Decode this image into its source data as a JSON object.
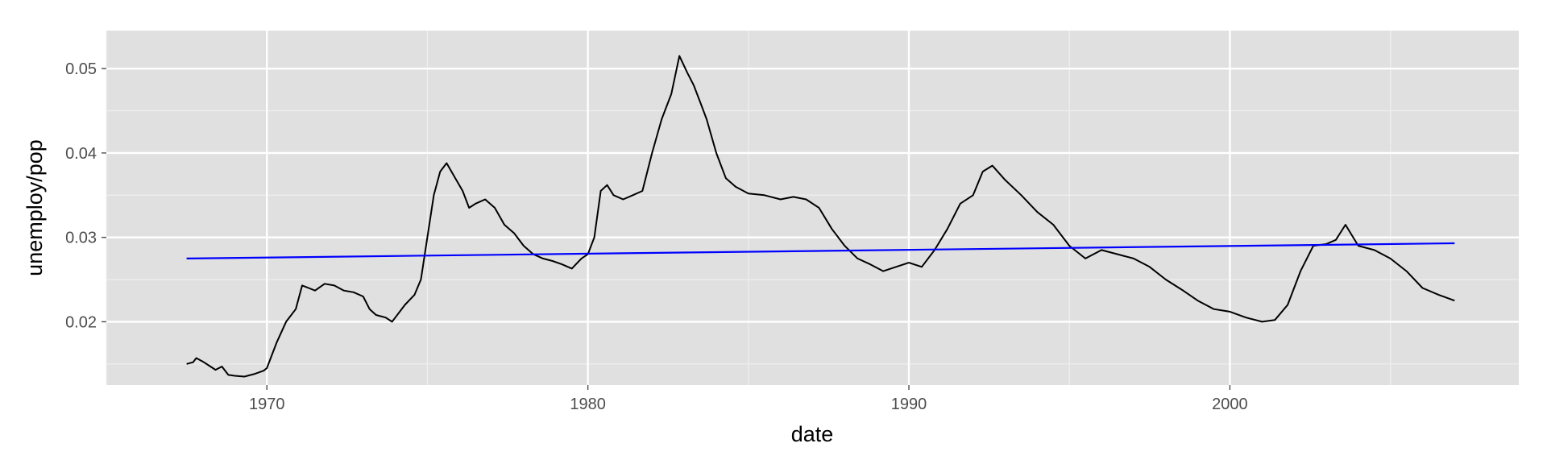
{
  "chart_data": {
    "type": "line",
    "xlabel": "date",
    "ylabel": "unemploy/pop",
    "xlim": [
      1965.0,
      2009.0
    ],
    "ylim": [
      0.0125,
      0.0545
    ],
    "x_ticks": [
      1970,
      1980,
      1990,
      2000
    ],
    "x_tick_labels": [
      "1970",
      "1980",
      "1990",
      "2000"
    ],
    "y_ticks": [
      0.02,
      0.03,
      0.04,
      0.05
    ],
    "y_tick_labels": [
      "0.02",
      "0.03",
      "0.04",
      "0.05"
    ],
    "grid": true,
    "panel_background": "#e0e0e0",
    "series": [
      {
        "color": "#000000",
        "x": [
          1967.5,
          1967.7,
          1967.8,
          1968.0,
          1968.2,
          1968.4,
          1968.6,
          1968.8,
          1969.0,
          1969.3,
          1969.6,
          1969.9,
          1970.0,
          1970.3,
          1970.6,
          1970.9,
          1971.1,
          1971.3,
          1971.5,
          1971.8,
          1972.1,
          1972.4,
          1972.7,
          1973.0,
          1973.2,
          1973.4,
          1973.7,
          1973.9,
          1974.0,
          1974.3,
          1974.6,
          1974.8,
          1975.0,
          1975.2,
          1975.4,
          1975.6,
          1975.9,
          1976.1,
          1976.3,
          1976.5,
          1976.8,
          1977.1,
          1977.4,
          1977.7,
          1978.0,
          1978.3,
          1978.6,
          1978.9,
          1979.2,
          1979.5,
          1979.8,
          1980.0,
          1980.2,
          1980.4,
          1980.6,
          1980.8,
          1981.1,
          1981.4,
          1981.7,
          1982.0,
          1982.3,
          1982.6,
          1982.85,
          1983.1,
          1983.3,
          1983.5,
          1983.7,
          1984.0,
          1984.3,
          1984.6,
          1985.0,
          1985.5,
          1986.0,
          1986.4,
          1986.8,
          1987.2,
          1987.6,
          1988.0,
          1988.4,
          1988.8,
          1989.2,
          1989.6,
          1990.0,
          1990.4,
          1990.8,
          1991.2,
          1991.6,
          1992.0,
          1992.3,
          1992.6,
          1993.0,
          1993.5,
          1994.0,
          1994.5,
          1995.0,
          1995.5,
          1996.0,
          1996.5,
          1997.0,
          1997.5,
          1998.0,
          1998.5,
          1999.0,
          1999.5,
          2000.0,
          2000.5,
          2001.0,
          2001.4,
          2001.8,
          2002.2,
          2002.6,
          2003.0,
          2003.3,
          2003.6,
          2004.0,
          2004.5,
          2005.0,
          2005.5,
          2006.0,
          2006.5,
          2007.0
        ],
        "y": [
          0.015,
          0.0152,
          0.0157,
          0.0153,
          0.0148,
          0.0143,
          0.0147,
          0.0137,
          0.0136,
          0.0135,
          0.0138,
          0.0142,
          0.0145,
          0.0175,
          0.02,
          0.0215,
          0.0243,
          0.024,
          0.0237,
          0.0245,
          0.0243,
          0.0237,
          0.0235,
          0.023,
          0.0215,
          0.0208,
          0.0205,
          0.02,
          0.0205,
          0.022,
          0.0232,
          0.025,
          0.03,
          0.035,
          0.0378,
          0.0388,
          0.0368,
          0.0355,
          0.0335,
          0.034,
          0.0345,
          0.0335,
          0.0315,
          0.0305,
          0.029,
          0.028,
          0.0275,
          0.0272,
          0.0268,
          0.0263,
          0.0275,
          0.028,
          0.03,
          0.0355,
          0.0362,
          0.035,
          0.0345,
          0.035,
          0.0355,
          0.04,
          0.044,
          0.047,
          0.0515,
          0.0495,
          0.048,
          0.046,
          0.044,
          0.04,
          0.037,
          0.036,
          0.0352,
          0.035,
          0.0345,
          0.0348,
          0.0345,
          0.0335,
          0.031,
          0.029,
          0.0275,
          0.0268,
          0.026,
          0.0265,
          0.027,
          0.0265,
          0.0285,
          0.031,
          0.034,
          0.035,
          0.0378,
          0.0385,
          0.0368,
          0.035,
          0.033,
          0.0315,
          0.029,
          0.0275,
          0.0285,
          0.028,
          0.0275,
          0.0265,
          0.025,
          0.0238,
          0.0225,
          0.0215,
          0.0212,
          0.0205,
          0.02,
          0.0202,
          0.022,
          0.026,
          0.029,
          0.0292,
          0.0297,
          0.0315,
          0.029,
          0.0285,
          0.0275,
          0.026,
          0.024,
          0.0232,
          0.0225
        ]
      },
      {
        "color": "#0000ff",
        "x": [
          1967.5,
          2007.0
        ],
        "y": [
          0.0275,
          0.0293
        ]
      }
    ]
  }
}
